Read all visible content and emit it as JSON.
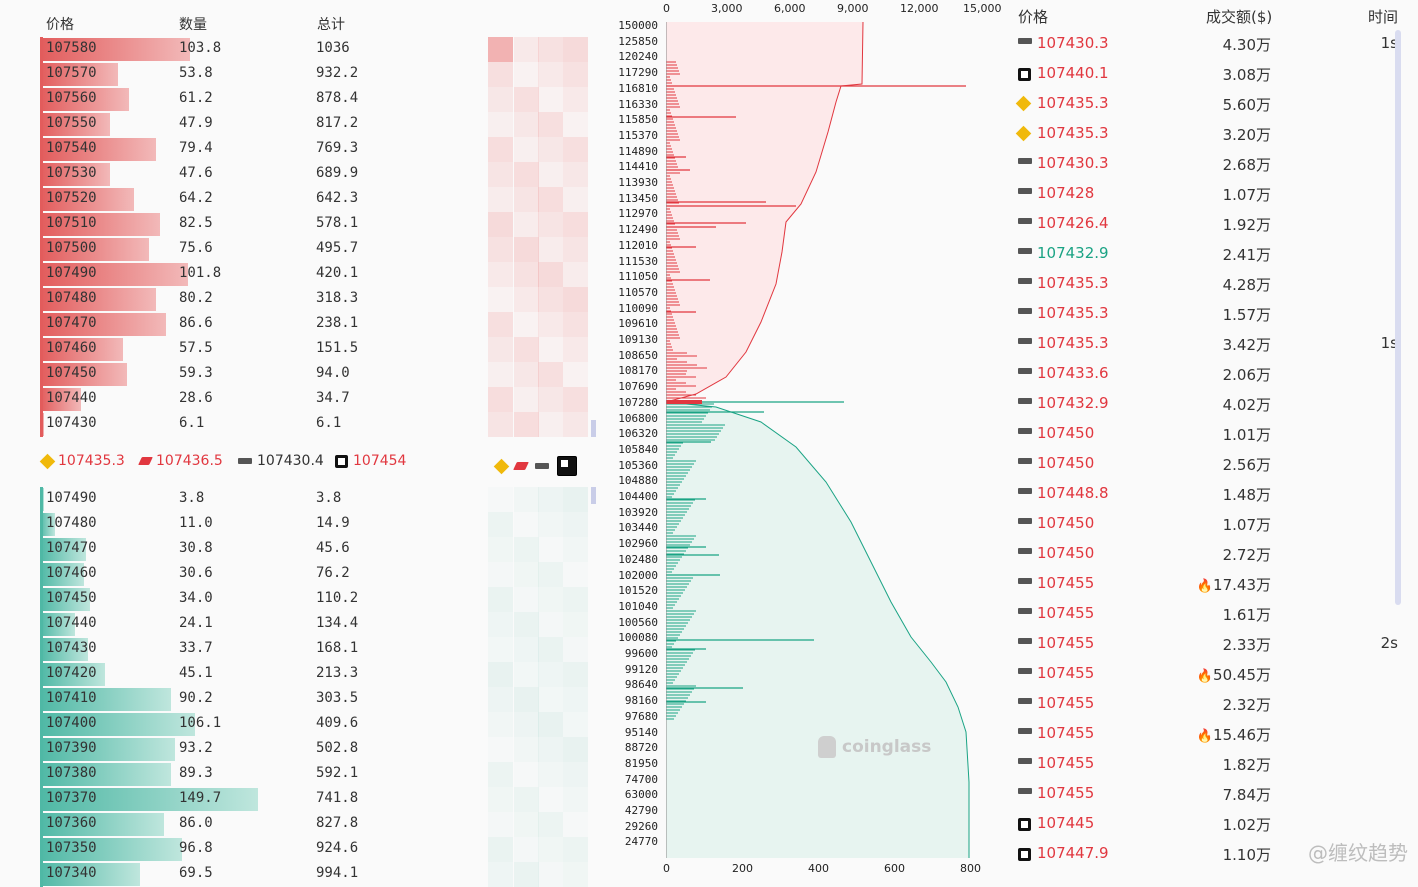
{
  "orderbook": {
    "headers": {
      "price": "价格",
      "qty": "数量",
      "total": "总计"
    },
    "asks": [
      {
        "price": "107580",
        "qty": "103.8",
        "total": "1036",
        "w": 0.69
      },
      {
        "price": "107570",
        "qty": "53.8",
        "total": "932.2",
        "w": 0.36
      },
      {
        "price": "107560",
        "qty": "61.2",
        "total": "878.4",
        "w": 0.41
      },
      {
        "price": "107550",
        "qty": "47.9",
        "total": "817.2",
        "w": 0.32
      },
      {
        "price": "107540",
        "qty": "79.4",
        "total": "769.3",
        "w": 0.53
      },
      {
        "price": "107530",
        "qty": "47.6",
        "total": "689.9",
        "w": 0.32
      },
      {
        "price": "107520",
        "qty": "64.2",
        "total": "642.3",
        "w": 0.43
      },
      {
        "price": "107510",
        "qty": "82.5",
        "total": "578.1",
        "w": 0.55
      },
      {
        "price": "107500",
        "qty": "75.6",
        "total": "495.7",
        "w": 0.5
      },
      {
        "price": "107490",
        "qty": "101.8",
        "total": "420.1",
        "w": 0.68
      },
      {
        "price": "107480",
        "qty": "80.2",
        "total": "318.3",
        "w": 0.53
      },
      {
        "price": "107470",
        "qty": "86.6",
        "total": "238.1",
        "w": 0.58
      },
      {
        "price": "107460",
        "qty": "57.5",
        "total": "151.5",
        "w": 0.38
      },
      {
        "price": "107450",
        "qty": "59.3",
        "total": "94.0",
        "w": 0.4
      },
      {
        "price": "107440",
        "qty": "28.6",
        "total": "34.7",
        "w": 0.19
      },
      {
        "price": "107430",
        "qty": "6.1",
        "total": "6.1",
        "w": 0.02
      }
    ],
    "bids": [
      {
        "price": "107490",
        "qty": "3.8",
        "total": "3.8",
        "w": 0.02
      },
      {
        "price": "107480",
        "qty": "11.0",
        "total": "14.9",
        "w": 0.07
      },
      {
        "price": "107470",
        "qty": "30.8",
        "total": "45.6",
        "w": 0.21
      },
      {
        "price": "107460",
        "qty": "30.6",
        "total": "76.2",
        "w": 0.2
      },
      {
        "price": "107450",
        "qty": "34.0",
        "total": "110.2",
        "w": 0.23
      },
      {
        "price": "107440",
        "qty": "24.1",
        "total": "134.4",
        "w": 0.16
      },
      {
        "price": "107430",
        "qty": "33.7",
        "total": "168.1",
        "w": 0.22
      },
      {
        "price": "107420",
        "qty": "45.1",
        "total": "213.3",
        "w": 0.3
      },
      {
        "price": "107410",
        "qty": "90.2",
        "total": "303.5",
        "w": 0.6
      },
      {
        "price": "107400",
        "qty": "106.1",
        "total": "409.6",
        "w": 0.71
      },
      {
        "price": "107390",
        "qty": "93.2",
        "total": "502.8",
        "w": 0.62
      },
      {
        "price": "107380",
        "qty": "89.3",
        "total": "592.1",
        "w": 0.6
      },
      {
        "price": "107370",
        "qty": "149.7",
        "total": "741.8",
        "w": 1.0
      },
      {
        "price": "107360",
        "qty": "86.0",
        "total": "827.8",
        "w": 0.57
      },
      {
        "price": "107350",
        "qty": "96.8",
        "total": "924.6",
        "w": 0.65
      },
      {
        "price": "107340",
        "qty": "69.5",
        "total": "994.1",
        "w": 0.46
      }
    ],
    "ticker": [
      {
        "icon": "bnb-icon",
        "value": "107435.3"
      },
      {
        "icon": "coinbase-icon",
        "value": "107436.5"
      },
      {
        "icon": "bit-icon",
        "value": "107430.4"
      },
      {
        "icon": "okx-icon",
        "value": "107454"
      }
    ]
  },
  "depth": {
    "top_axis": [
      "0",
      "3,000",
      "6,000",
      "9,000",
      "12,000",
      "15,000"
    ],
    "bottom_axis": [
      "0",
      "200",
      "400",
      "600",
      "800"
    ],
    "price_labels": [
      "150000",
      "125850",
      "120240",
      "117290",
      "116810",
      "116330",
      "115850",
      "115370",
      "114890",
      "114410",
      "113930",
      "113450",
      "112970",
      "112490",
      "112010",
      "111530",
      "111050",
      "110570",
      "110090",
      "109610",
      "109130",
      "108650",
      "108170",
      "107690",
      "107280",
      "106800",
      "106320",
      "105840",
      "105360",
      "104880",
      "104400",
      "103920",
      "103440",
      "102960",
      "102480",
      "102000",
      "101520",
      "101040",
      "100560",
      "100080",
      "99600",
      "99120",
      "98640",
      "98160",
      "97680",
      "95140",
      "88720",
      "81950",
      "74700",
      "63000",
      "42790",
      "29260",
      "24770"
    ],
    "watermark": "coinglass",
    "colors": {
      "ask": "#e1373f",
      "bid": "#1aa384"
    }
  },
  "trades": {
    "headers": {
      "price": "价格",
      "amount": "成交额($)",
      "time": "时间"
    },
    "rows": [
      {
        "icon": "bit-icon",
        "price": "107430.3",
        "side": "sell",
        "amount": "4.30万",
        "time": "1s",
        "fire": false
      },
      {
        "icon": "okx-icon",
        "price": "107440.1",
        "side": "sell",
        "amount": "3.08万",
        "time": "",
        "fire": false
      },
      {
        "icon": "bnb-icon",
        "price": "107435.3",
        "side": "sell",
        "amount": "5.60万",
        "time": "",
        "fire": false
      },
      {
        "icon": "bnb-icon",
        "price": "107435.3",
        "side": "sell",
        "amount": "3.20万",
        "time": "",
        "fire": false
      },
      {
        "icon": "bit-icon",
        "price": "107430.3",
        "side": "sell",
        "amount": "2.68万",
        "time": "",
        "fire": false
      },
      {
        "icon": "bit-icon",
        "price": "107428",
        "side": "sell",
        "amount": "1.07万",
        "time": "",
        "fire": false
      },
      {
        "icon": "bit-icon",
        "price": "107426.4",
        "side": "sell",
        "amount": "1.92万",
        "time": "",
        "fire": false
      },
      {
        "icon": "bit-icon",
        "price": "107432.9",
        "side": "buy",
        "amount": "2.41万",
        "time": "",
        "fire": false
      },
      {
        "icon": "bit-icon",
        "price": "107435.3",
        "side": "sell",
        "amount": "4.28万",
        "time": "",
        "fire": false
      },
      {
        "icon": "bit-icon",
        "price": "107435.3",
        "side": "sell",
        "amount": "1.57万",
        "time": "",
        "fire": false
      },
      {
        "icon": "bit-icon",
        "price": "107435.3",
        "side": "sell",
        "amount": "3.42万",
        "time": "1s",
        "fire": false
      },
      {
        "icon": "bit-icon",
        "price": "107433.6",
        "side": "sell",
        "amount": "2.06万",
        "time": "",
        "fire": false
      },
      {
        "icon": "bit-icon",
        "price": "107432.9",
        "side": "sell",
        "amount": "4.02万",
        "time": "",
        "fire": false
      },
      {
        "icon": "bit-icon",
        "price": "107450",
        "side": "sell",
        "amount": "1.01万",
        "time": "",
        "fire": false
      },
      {
        "icon": "bit-icon",
        "price": "107450",
        "side": "sell",
        "amount": "2.56万",
        "time": "",
        "fire": false
      },
      {
        "icon": "bit-icon",
        "price": "107448.8",
        "side": "sell",
        "amount": "1.48万",
        "time": "",
        "fire": false
      },
      {
        "icon": "bit-icon",
        "price": "107450",
        "side": "sell",
        "amount": "1.07万",
        "time": "",
        "fire": false
      },
      {
        "icon": "bit-icon",
        "price": "107450",
        "side": "sell",
        "amount": "2.72万",
        "time": "",
        "fire": false
      },
      {
        "icon": "bit-icon",
        "price": "107455",
        "side": "sell",
        "amount": "17.43万",
        "time": "",
        "fire": true
      },
      {
        "icon": "bit-icon",
        "price": "107455",
        "side": "sell",
        "amount": "1.61万",
        "time": "",
        "fire": false
      },
      {
        "icon": "bit-icon",
        "price": "107455",
        "side": "sell",
        "amount": "2.33万",
        "time": "2s",
        "fire": false
      },
      {
        "icon": "bit-icon",
        "price": "107455",
        "side": "sell",
        "amount": "50.45万",
        "time": "",
        "fire": true
      },
      {
        "icon": "bit-icon",
        "price": "107455",
        "side": "sell",
        "amount": "2.32万",
        "time": "",
        "fire": false
      },
      {
        "icon": "bit-icon",
        "price": "107455",
        "side": "sell",
        "amount": "15.46万",
        "time": "",
        "fire": true
      },
      {
        "icon": "bit-icon",
        "price": "107455",
        "side": "sell",
        "amount": "1.82万",
        "time": "",
        "fire": false
      },
      {
        "icon": "bit-icon",
        "price": "107455",
        "side": "sell",
        "amount": "7.84万",
        "time": "",
        "fire": false
      },
      {
        "icon": "okx-icon",
        "price": "107445",
        "side": "sell",
        "amount": "1.02万",
        "time": "",
        "fire": false
      },
      {
        "icon": "okx-icon",
        "price": "107447.9",
        "side": "sell",
        "amount": "1.10万",
        "time": "",
        "fire": false
      }
    ],
    "watermark": "@缠纹趋势"
  }
}
